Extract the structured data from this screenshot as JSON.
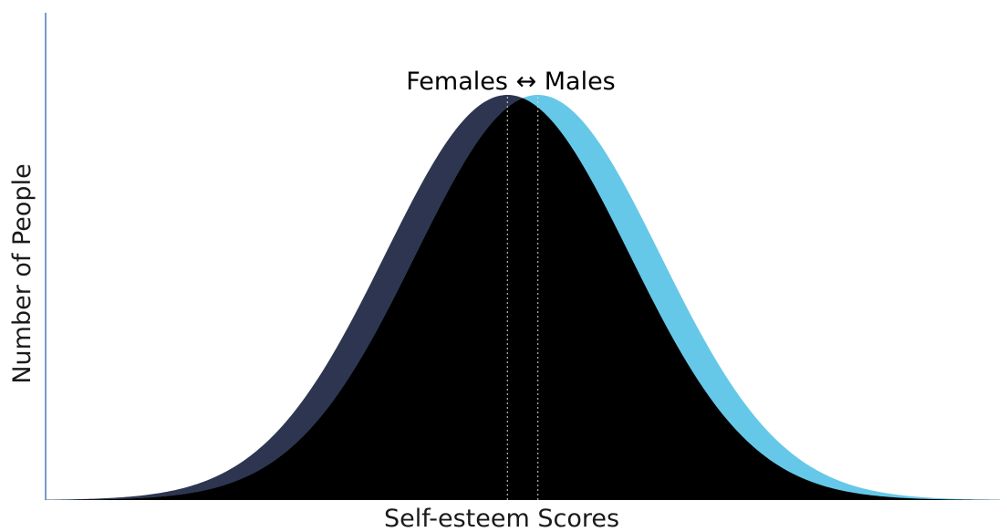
{
  "chart_data": {
    "type": "area",
    "title": "",
    "xlabel": "Self-esteem Scores",
    "ylabel": "Number of People",
    "annotation": "Females ↔ Males",
    "grid": false,
    "legend": "none",
    "xlim": [
      0,
      100
    ],
    "ylim": [
      0,
      1
    ],
    "series": [
      {
        "name": "Females",
        "distribution": "normal",
        "mean": 48.4,
        "sd": 12.8,
        "peak": 1,
        "color": "#2e3550"
      },
      {
        "name": "Males",
        "distribution": "normal",
        "mean": 51.6,
        "sd": 12.8,
        "peak": 1,
        "color": "#66c8e8"
      }
    ],
    "overlap_color": "#000000",
    "mean_markers": [
      48.4,
      51.6
    ],
    "axis_color": "#4a7ab5"
  }
}
